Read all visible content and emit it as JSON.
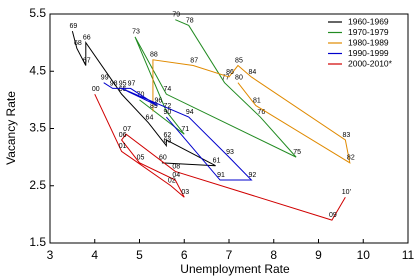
{
  "chart_data": {
    "type": "line",
    "x_label": "Unemployment Rate",
    "y_label": "Vacancy Rate",
    "xlim": [
      3,
      11
    ],
    "xticks": [
      3,
      4,
      5,
      6,
      7,
      8,
      9,
      10,
      11
    ],
    "ylim": [
      1.5,
      5.5
    ],
    "yticks": [
      1.5,
      2.5,
      3.5,
      4.5,
      5.5
    ],
    "legend": "upper right",
    "series": [
      {
        "name": "1960-1969",
        "color": "#000000",
        "x": [
          5.5,
          6.7,
          5.6,
          5.6,
          5.2,
          4.6,
          3.8,
          3.8,
          3.6,
          3.5
        ],
        "values": [
          2.9,
          2.85,
          3.3,
          3.2,
          3.6,
          4.1,
          5.0,
          4.6,
          4.9,
          5.2
        ],
        "point_labels": [
          "60",
          "61",
          "62",
          "63",
          "64",
          "65",
          "66",
          "67",
          "68",
          "69"
        ]
      },
      {
        "name": "1970-1979",
        "color": "#228b22",
        "x": [
          5.0,
          6.0,
          5.6,
          4.9,
          5.6,
          8.5,
          7.7,
          6.9,
          6.1,
          5.8
        ],
        "values": [
          4.0,
          3.4,
          3.8,
          5.1,
          4.1,
          3.0,
          3.7,
          4.3,
          5.3,
          5.4
        ],
        "point_labels": [
          "70",
          "71",
          "72",
          "73",
          "74",
          "75",
          "76",
          "77",
          "78",
          "79"
        ]
      },
      {
        "name": "1980-1989",
        "color": "#e08a00",
        "x": [
          7.2,
          7.6,
          9.7,
          9.6,
          7.5,
          7.2,
          7.0,
          6.2,
          5.3,
          5.3
        ],
        "values": [
          4.3,
          3.9,
          2.9,
          3.3,
          4.4,
          4.6,
          4.4,
          4.6,
          4.7,
          3.8
        ],
        "point_labels": [
          "80",
          "81",
          "82",
          "83",
          "84",
          "85",
          "86",
          "87",
          "88",
          "89"
        ]
      },
      {
        "name": "1990-1999",
        "color": "#0000cc",
        "x": [
          5.6,
          6.8,
          7.5,
          7.0,
          6.1,
          4.6,
          5.4,
          4.8,
          4.4,
          4.2
        ],
        "values": [
          3.7,
          2.6,
          2.6,
          3.0,
          3.7,
          4.2,
          3.9,
          4.2,
          4.2,
          4.3
        ],
        "point_labels": [
          "90",
          "91",
          "92",
          "93",
          "94",
          "95",
          "96",
          "97",
          "98",
          "99"
        ]
      },
      {
        "name": "2000-2010*",
        "color": "#d00000",
        "x": [
          4.0,
          4.6,
          5.7,
          6.0,
          5.8,
          5.0,
          4.6,
          4.7,
          5.8,
          9.3,
          9.6
        ],
        "values": [
          4.1,
          3.1,
          2.5,
          2.3,
          2.6,
          2.9,
          3.3,
          3.4,
          2.75,
          1.9,
          2.3
        ],
        "point_labels": [
          "00",
          "01",
          "02",
          "03",
          "04",
          "05",
          "06",
          "07",
          "08",
          "09",
          "10'"
        ]
      }
    ]
  }
}
